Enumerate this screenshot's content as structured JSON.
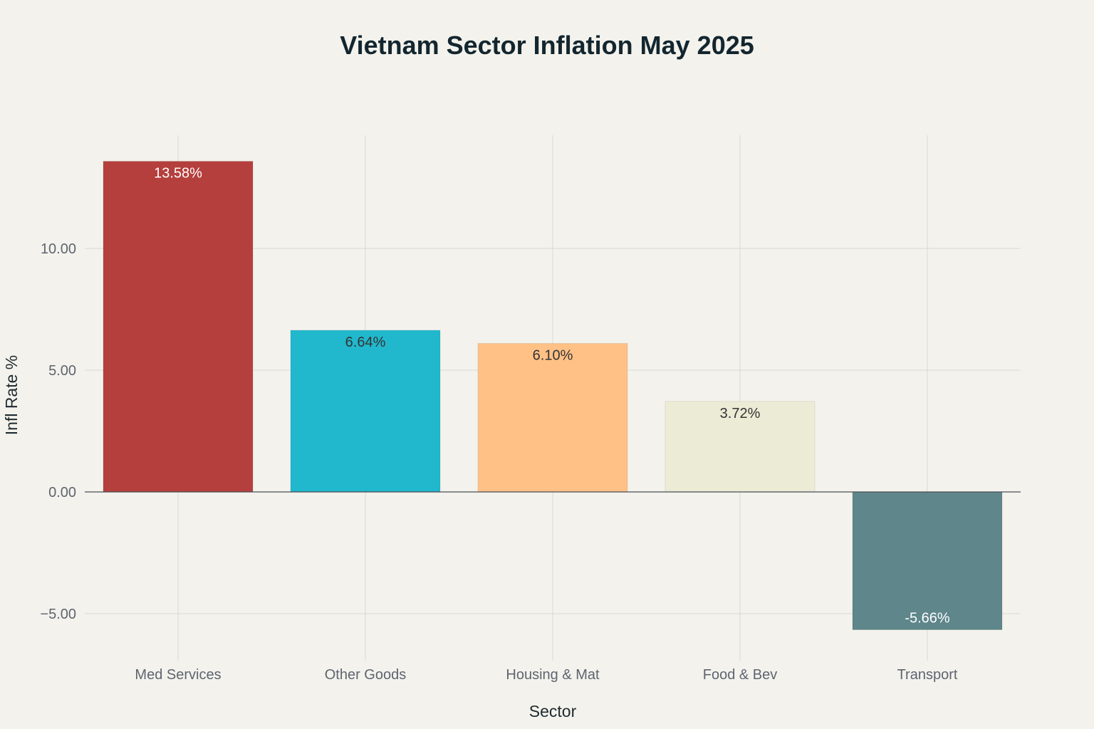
{
  "chart_data": {
    "type": "bar",
    "title": "Vietnam Sector Inflation May 2025",
    "xlabel": "Sector",
    "ylabel": "Infl Rate %",
    "categories": [
      "Med Services",
      "Other Goods",
      "Housing & Mat",
      "Food & Bev",
      "Transport"
    ],
    "values": [
      13.58,
      6.64,
      6.1,
      3.72,
      -5.66
    ],
    "data_labels": [
      "13.58%",
      "6.64%",
      "6.10%",
      "3.72%",
      "-5.66%"
    ],
    "colors": [
      "#b43f3c",
      "#21b8cd",
      "#ffc186",
      "#ecebd6",
      "#5e868b"
    ],
    "label_colors": [
      "#ffffff",
      "#333333",
      "#333333",
      "#333333",
      "#ffffff"
    ],
    "yticks": [
      -5,
      0,
      5,
      10
    ],
    "ytick_labels": [
      "−5.00",
      "0.00",
      "5.00",
      "10.00"
    ],
    "ylim": [
      -6.75,
      14.67
    ],
    "grid": true,
    "legend": "none"
  }
}
